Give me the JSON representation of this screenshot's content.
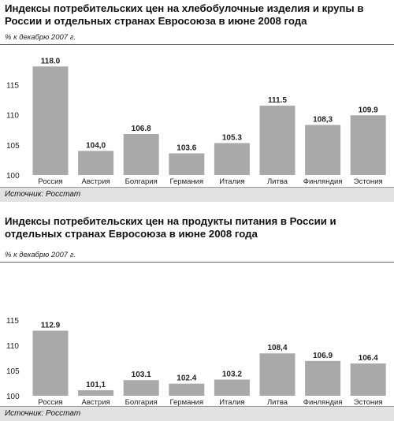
{
  "charts": [
    {
      "title": "Индексы потребительских цен на хлебобулочные изделия и крупы в России и отдельных странах Евросоюза в июне 2008 года",
      "unit": "% к декабрю 2007 г.",
      "source": "Источник: Росстат"
    },
    {
      "title": "Индексы потребительских цен на продукты питания в России и отдельных странах Евросоюза в июне 2008 года",
      "unit": "% к декабрю 2007 г.",
      "source": "Источник: Росстат"
    }
  ],
  "chart_data": [
    {
      "type": "bar",
      "title": "Индексы потребительских цен на хлебобулочные изделия и крупы в России и отдельных странах Евросоюза в июне 2008 года",
      "ylabel": "% к декабрю 2007 г.",
      "categories": [
        "Россия",
        "Австрия",
        "Болгария",
        "Германия",
        "Италия",
        "Литва",
        "Финляндия",
        "Эстония"
      ],
      "values": [
        118.0,
        104.0,
        106.8,
        103.6,
        105.3,
        111.5,
        108.3,
        109.9
      ],
      "value_labels": [
        "118.0",
        "104,0",
        "106.8",
        "103.6",
        "105.3",
        "111.5",
        "108,3",
        "109.9"
      ],
      "yticks": [
        "100",
        "105",
        "110",
        "115"
      ],
      "ylim": [
        98,
        120
      ],
      "grid": false,
      "bar_color": "#a9a9a9"
    },
    {
      "type": "bar",
      "title": "Индексы потребительских цен на продукты питания в России и отдельных странах Евросоюза в июне 2008 года",
      "ylabel": "% к декабрю 2007 г.",
      "categories": [
        "Россия",
        "Австрия",
        "Болгария",
        "Германия",
        "Италия",
        "Литва",
        "Финляндия",
        "Эстония"
      ],
      "values": [
        112.9,
        101.1,
        103.1,
        102.4,
        103.2,
        108.4,
        106.9,
        106.4
      ],
      "value_labels": [
        "112.9",
        "101,1",
        "103.1",
        "102.4",
        "103.2",
        "108,4",
        "106.9",
        "106.4"
      ],
      "yticks": [
        "100",
        "105",
        "110",
        "115"
      ],
      "ylim": [
        98,
        118
      ],
      "grid": false,
      "bar_color": "#a9a9a9"
    }
  ]
}
